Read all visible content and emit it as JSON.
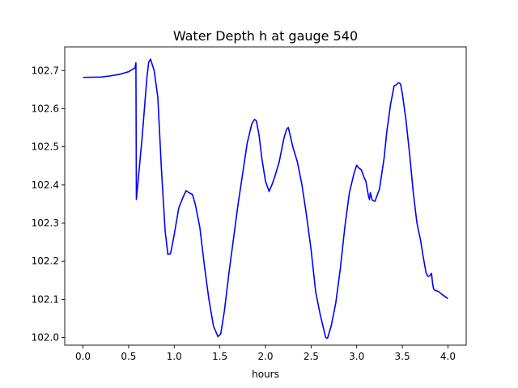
{
  "chart_data": {
    "type": "line",
    "title": "Water Depth h at gauge 540",
    "xlabel": "hours",
    "ylabel": "",
    "xlim": [
      -0.2,
      4.2
    ],
    "ylim": [
      101.98,
      102.762
    ],
    "xticks": [
      0.0,
      0.5,
      1.0,
      1.5,
      2.0,
      2.5,
      3.0,
      3.5,
      4.0
    ],
    "xtick_labels": [
      "0.0",
      "0.5",
      "1.0",
      "1.5",
      "2.0",
      "2.5",
      "3.0",
      "3.5",
      "4.0"
    ],
    "yticks": [
      102.0,
      102.1,
      102.2,
      102.3,
      102.4,
      102.5,
      102.6,
      102.7
    ],
    "ytick_labels": [
      "102.0",
      "102.1",
      "102.2",
      "102.3",
      "102.4",
      "102.5",
      "102.6",
      "102.7"
    ],
    "grid": false,
    "series": [
      {
        "color": "#0000ff",
        "x": [
          0.0,
          0.2,
          0.3,
          0.4,
          0.5,
          0.57,
          0.58,
          0.585,
          0.6,
          0.65,
          0.7,
          0.72,
          0.74,
          0.78,
          0.82,
          0.86,
          0.9,
          0.93,
          0.96,
          1.0,
          1.05,
          1.1,
          1.13,
          1.16,
          1.2,
          1.23,
          1.28,
          1.33,
          1.38,
          1.43,
          1.48,
          1.51,
          1.55,
          1.6,
          1.65,
          1.7,
          1.75,
          1.8,
          1.85,
          1.88,
          1.9,
          1.93,
          1.96,
          2.0,
          2.04,
          2.07,
          2.1,
          2.15,
          2.2,
          2.23,
          2.25,
          2.3,
          2.35,
          2.4,
          2.45,
          2.5,
          2.55,
          2.6,
          2.63,
          2.66,
          2.68,
          2.72,
          2.77,
          2.82,
          2.87,
          2.92,
          2.97,
          3.0,
          3.02,
          3.05,
          3.08,
          3.1,
          3.13,
          3.14,
          3.15,
          3.17,
          3.2,
          3.25,
          3.3,
          3.33,
          3.37,
          3.41,
          3.43,
          3.46,
          3.48,
          3.5,
          3.54,
          3.58,
          3.62,
          3.66,
          3.7,
          3.73,
          3.76,
          3.78,
          3.8,
          3.82,
          3.83,
          3.84,
          3.85,
          3.9,
          3.94,
          4.0
        ],
        "y": [
          102.682,
          102.683,
          102.686,
          102.69,
          102.697,
          102.707,
          102.72,
          102.362,
          102.4,
          102.53,
          102.68,
          102.722,
          102.73,
          102.7,
          102.63,
          102.44,
          102.28,
          102.218,
          102.22,
          102.27,
          102.34,
          102.37,
          102.385,
          102.38,
          102.375,
          102.35,
          102.29,
          102.19,
          102.1,
          102.03,
          102.002,
          102.01,
          102.07,
          102.17,
          102.26,
          102.35,
          102.43,
          102.51,
          102.56,
          102.572,
          102.568,
          102.53,
          102.47,
          102.41,
          102.383,
          102.4,
          102.42,
          102.46,
          102.52,
          102.545,
          102.551,
          102.5,
          102.46,
          102.4,
          102.32,
          102.23,
          102.12,
          102.06,
          102.03,
          102.0,
          101.998,
          102.03,
          102.09,
          102.18,
          102.29,
          102.38,
          102.43,
          102.452,
          102.445,
          102.44,
          102.42,
          102.41,
          102.37,
          102.362,
          102.38,
          102.36,
          102.357,
          102.39,
          102.47,
          102.54,
          102.61,
          102.66,
          102.662,
          102.668,
          102.665,
          102.64,
          102.57,
          102.48,
          102.38,
          102.3,
          102.255,
          102.21,
          102.17,
          102.16,
          102.162,
          102.168,
          102.145,
          102.13,
          102.125,
          102.12,
          102.112,
          102.102
        ]
      }
    ]
  }
}
